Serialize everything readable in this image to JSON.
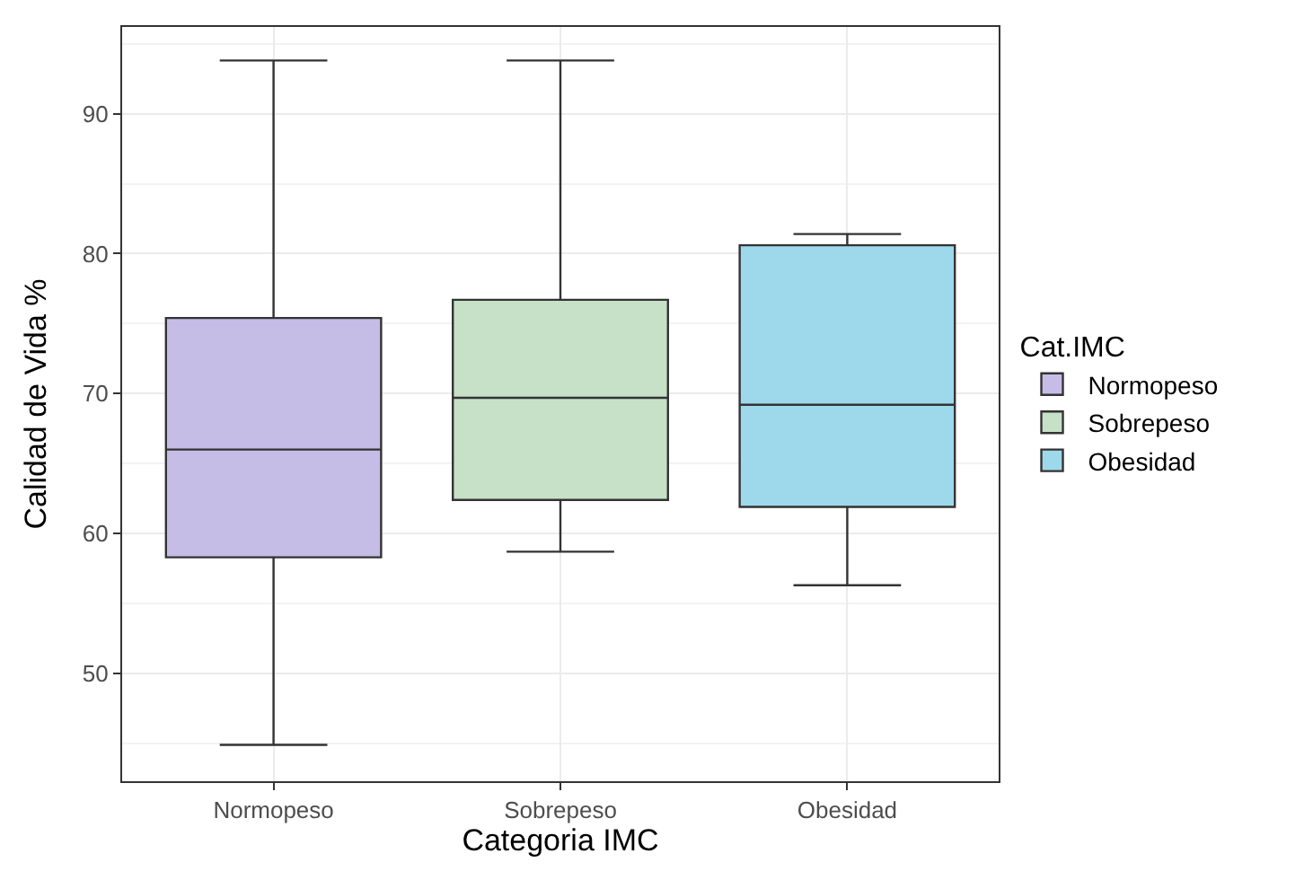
{
  "chart_data": {
    "type": "box",
    "xlabel": "Categoria IMC",
    "ylabel": "Calidad de Vida %",
    "legend_title": "Cat.IMC",
    "categories": [
      "Normopeso",
      "Sobrepeso",
      "Obesidad"
    ],
    "series": [
      {
        "name": "Normopeso",
        "color": "#c5bde6",
        "boxes": [
          {
            "low": 44.9,
            "q1": 58.3,
            "median": 66.0,
            "q3": 75.4,
            "high": 93.8
          },
          null,
          null
        ]
      },
      {
        "name": "Sobrepeso",
        "color": "#c7e1c9",
        "boxes": [
          null,
          {
            "low": 58.7,
            "q1": 62.4,
            "median": 69.7,
            "q3": 76.7,
            "high": 93.8
          },
          null
        ]
      },
      {
        "name": "Obesidad",
        "color": "#9dd9ea",
        "boxes": [
          null,
          null,
          {
            "low": 56.3,
            "q1": 61.9,
            "median": 69.2,
            "q3": 80.6,
            "high": 81.4
          }
        ]
      }
    ],
    "ylim": [
      42.3,
      96.2
    ],
    "yticks": [
      50,
      60,
      70,
      80,
      90
    ],
    "grid": true,
    "legend": "right"
  }
}
